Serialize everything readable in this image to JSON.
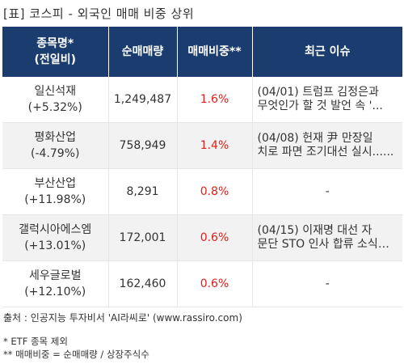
{
  "title": "[표] 코스피 - 외국인 매매 비중 상위",
  "table": {
    "headers": {
      "name_line1": "종목명*",
      "name_line2": "(전일비)",
      "volume": "순매매량",
      "ratio": "매매비중**",
      "issue": "최근 이슈"
    },
    "rows": [
      {
        "name": "일신석재",
        "change": "(+5.32%)",
        "volume": "1,249,487",
        "ratio": "1.6%",
        "issue_line1": "(04/01) 트럼프 김정은과",
        "issue_line2": "무엇인가 할 것 발언 속 '..."
      },
      {
        "name": "평화산업",
        "change": "(-4.79%)",
        "volume": "758,949",
        "ratio": "1.4%",
        "issue_line1": "(04/08) 헌재 尹 만장일",
        "issue_line2": "치로 파면 조기대선 실시......"
      },
      {
        "name": "부산산업",
        "change": "(+11.98%)",
        "volume": "8,291",
        "ratio": "0.8%",
        "issue_line1": "-",
        "issue_line2": ""
      },
      {
        "name": "갤럭시아에스엠",
        "change": "(+13.01%)",
        "volume": "172,001",
        "ratio": "0.6%",
        "issue_line1": "(04/15) 이재명 대선 자",
        "issue_line2": "문단 STO 인사 합류 소식에..."
      },
      {
        "name": "세우글로벌",
        "change": "(+12.10%)",
        "volume": "162,460",
        "ratio": "0.6%",
        "issue_line1": "-",
        "issue_line2": ""
      }
    ]
  },
  "footer": {
    "source": "출처 : 인공지능 투자비서 'AI라씨로' (www.rassiro.com)",
    "note1": "* ETF 종목 제외",
    "note2": "** 매매비중 = 순매매량 / 상장주식수"
  },
  "colors": {
    "header_bg": "#1a3c6e",
    "ratio_text": "#e0201b",
    "alt_row_bg": "#f2f2f2"
  }
}
